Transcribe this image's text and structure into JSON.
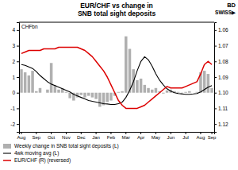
{
  "chart_data": {
    "type": "bar",
    "title": "EUR/CHF vs change in",
    "subtitle": "SNB total sight deposits",
    "ylabel": "CHFbn",
    "annotations": [
      "BD",
      "SWISS▶"
    ],
    "categories": [
      "Aug",
      null,
      null,
      null,
      "Sep",
      null,
      null,
      null,
      "Oct",
      null,
      null,
      null,
      "Nov",
      null,
      null,
      null,
      "Dec",
      null,
      null,
      null,
      "Jan",
      null,
      null,
      null,
      "Feb",
      null,
      null,
      null,
      "Mar",
      null,
      null,
      null,
      "Apr",
      null,
      null,
      null,
      "May",
      null,
      null,
      null,
      "Jun",
      null,
      null,
      null,
      "Jul",
      null,
      null,
      null,
      "Aug",
      null,
      null,
      "Sep"
    ],
    "series": [
      {
        "name": "Weekly change in SNB total sight deposits (L)",
        "type": "bar",
        "color": "#b0b0b0",
        "values": [
          1.5,
          1.3,
          1.1,
          1.4,
          0.1,
          0.3,
          0.0,
          0.2,
          1.9,
          0.5,
          0.2,
          0.3,
          0.05,
          -0.35,
          -0.5,
          -0.3,
          -0.15,
          -0.3,
          -0.2,
          -0.3,
          -0.4,
          -0.9,
          -0.8,
          -0.6,
          -0.5,
          -0.2,
          0.05,
          0.1,
          3.6,
          2.8,
          1.5,
          0.8,
          0.9,
          0.5,
          0.3,
          0.2,
          0.3,
          0.1,
          -0.05,
          0.15,
          0.2,
          0.1,
          0.05,
          -0.1,
          0.05,
          0.1,
          0.0,
          0.05,
          1.3,
          1.4,
          1.2,
          0.3
        ]
      },
      {
        "name": "4wk moving avg (L)",
        "type": "line",
        "color": "#000000",
        "values": [
          1.8,
          1.75,
          1.65,
          1.55,
          1.35,
          1.1,
          0.9,
          0.7,
          0.55,
          0.45,
          0.35,
          0.25,
          0.15,
          0.05,
          -0.1,
          -0.2,
          -0.3,
          -0.4,
          -0.5,
          -0.55,
          -0.6,
          -0.65,
          -0.7,
          -0.72,
          -0.75,
          -0.75,
          -0.7,
          -0.6,
          -0.3,
          0.15,
          0.7,
          1.4,
          2.0,
          2.3,
          2.1,
          1.7,
          1.2,
          0.8,
          0.5,
          0.25,
          0.1,
          0.0,
          -0.05,
          -0.08,
          -0.1,
          -0.1,
          -0.08,
          -0.05,
          0.05,
          0.2,
          0.35,
          0.45
        ]
      },
      {
        "name": "EUR/CHF (R) (reversed)",
        "type": "line",
        "color": "#dd0000",
        "axis": "y2",
        "values": [
          1.075,
          1.074,
          1.073,
          1.073,
          1.073,
          1.073,
          1.072,
          1.072,
          1.072,
          1.072,
          1.071,
          1.071,
          1.071,
          1.071,
          1.071,
          1.071,
          1.072,
          1.073,
          1.075,
          1.077,
          1.08,
          1.083,
          1.086,
          1.09,
          1.095,
          1.1,
          1.105,
          1.108,
          1.11,
          1.11,
          1.11,
          1.11,
          1.109,
          1.108,
          1.106,
          1.104,
          1.102,
          1.1,
          1.098,
          1.096,
          1.097,
          1.097,
          1.097,
          1.097,
          1.096,
          1.095,
          1.094,
          1.093,
          1.088,
          1.082,
          1.08,
          1.082
        ]
      }
    ],
    "ylim": [
      -2.5,
      4.5
    ],
    "yticks": [
      -2,
      -1,
      0,
      1,
      2,
      3,
      4
    ],
    "y2lim": [
      1.125,
      1.055
    ],
    "y2ticks": [
      1.06,
      1.07,
      1.08,
      1.09,
      {
        "value": 1.1,
        "label": "1.10"
      },
      1.11,
      1.12
    ],
    "grid": false,
    "legend": "bottom"
  }
}
